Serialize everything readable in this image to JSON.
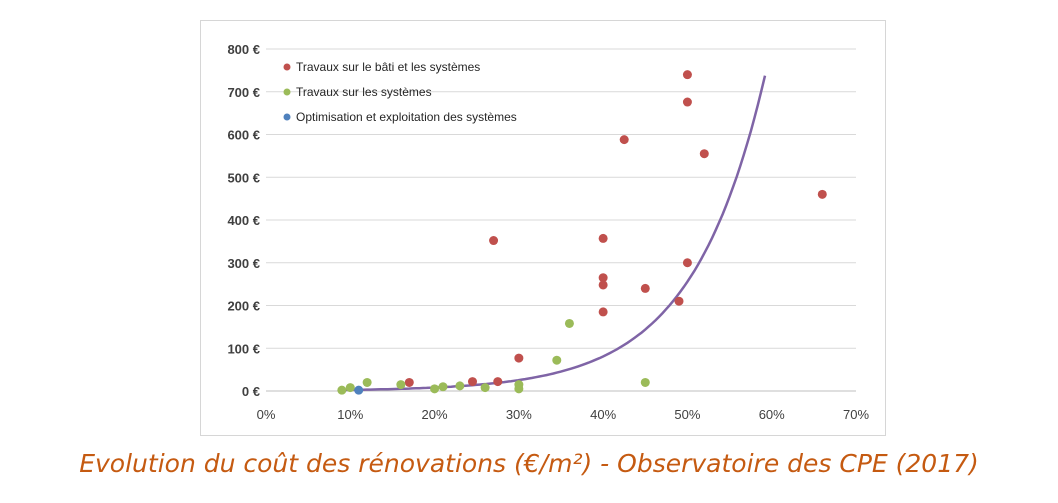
{
  "chart_data": {
    "type": "scatter",
    "xlim": [
      0,
      70
    ],
    "ylim": [
      0,
      800
    ],
    "x_ticks": [
      0,
      10,
      20,
      30,
      40,
      50,
      60,
      70
    ],
    "x_tick_labels": [
      "0%",
      "10%",
      "20%",
      "30%",
      "40%",
      "50%",
      "60%",
      "70%"
    ],
    "y_ticks": [
      0,
      100,
      200,
      300,
      400,
      500,
      600,
      700,
      800
    ],
    "y_tick_labels": [
      "0 €",
      "100 €",
      "200 €",
      "300 €",
      "400 €",
      "500 €",
      "600 €",
      "700 €",
      "800 €"
    ],
    "grid": "horizontal",
    "legend_position": "top-left",
    "series": [
      {
        "name": "Travaux sur le bâti et les systèmes",
        "color": "#c0504d",
        "points": [
          [
            17,
            20
          ],
          [
            24.5,
            22
          ],
          [
            27.5,
            22
          ],
          [
            27,
            352
          ],
          [
            30,
            77
          ],
          [
            40,
            357
          ],
          [
            40,
            265
          ],
          [
            40,
            248
          ],
          [
            40,
            185
          ],
          [
            42.5,
            588
          ],
          [
            45,
            240
          ],
          [
            49,
            210
          ],
          [
            50,
            740
          ],
          [
            50,
            676
          ],
          [
            50,
            300
          ],
          [
            52,
            555
          ],
          [
            66,
            460
          ]
        ]
      },
      {
        "name": "Travaux sur les systèmes",
        "color": "#9bbb59",
        "points": [
          [
            9,
            2
          ],
          [
            10,
            8
          ],
          [
            12,
            20
          ],
          [
            16,
            15
          ],
          [
            20,
            5
          ],
          [
            21,
            10
          ],
          [
            23,
            12
          ],
          [
            26,
            8
          ],
          [
            30,
            15
          ],
          [
            30,
            5
          ],
          [
            34.5,
            72
          ],
          [
            36,
            158
          ],
          [
            45,
            20
          ]
        ]
      },
      {
        "name": "Optimisation et exploitation des systèmes",
        "color": "#4f81bd",
        "points": [
          [
            11,
            2
          ]
        ]
      }
    ],
    "trendline": {
      "type": "exponential",
      "color": "#7f64a6",
      "a": 0.81,
      "b": 0.1151,
      "x_range": [
        9,
        59.2
      ]
    }
  },
  "caption": "Evolution du coût des rénovations (€/m²) - Observatoire des CPE (2017)"
}
